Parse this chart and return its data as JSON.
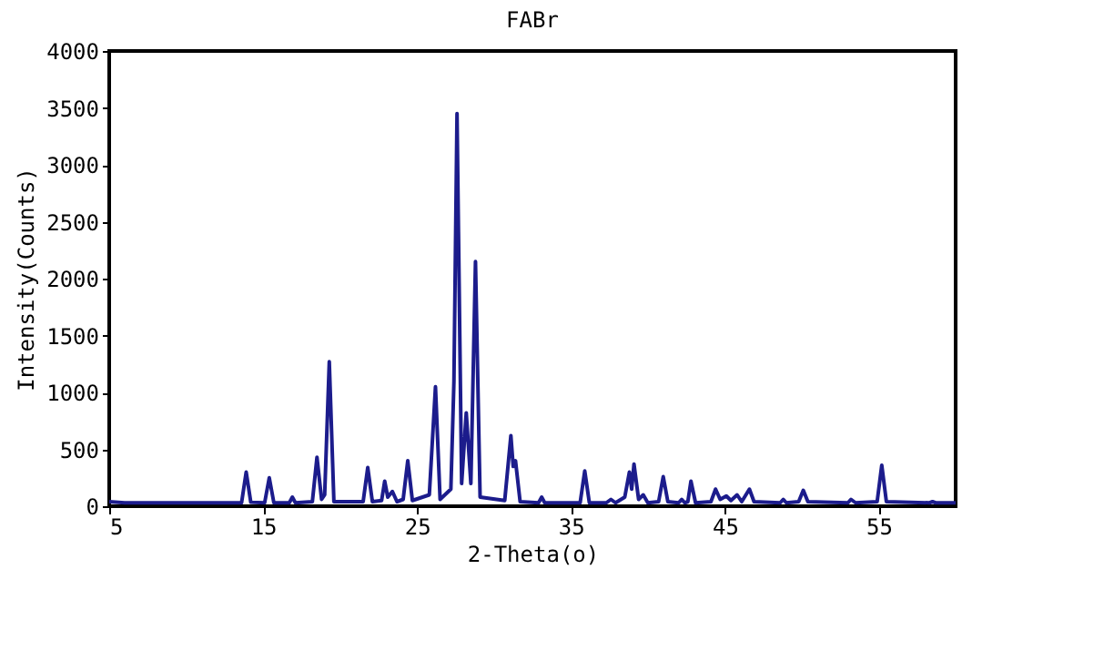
{
  "chart_data": {
    "type": "line",
    "title": "FABr",
    "xlabel": "2-Theta(o)",
    "ylabel": "Intensity(Counts)",
    "xlim": [
      5,
      60
    ],
    "xticks": [
      5,
      15,
      25,
      35,
      45,
      55
    ],
    "ylim": [
      0,
      4000
    ],
    "yticks": [
      0,
      500,
      1000,
      1500,
      2000,
      2500,
      3000,
      3500,
      4000
    ],
    "grid": false,
    "legend": false,
    "marker": "none",
    "line_style": "solid",
    "series": [
      {
        "color": "#1c1c8c",
        "x": [
          5,
          6,
          10,
          13.6,
          13.9,
          14.2,
          15.1,
          15.4,
          15.7,
          16.7,
          16.9,
          17.1,
          18.2,
          18.5,
          18.8,
          19.0,
          19.3,
          19.6,
          21.5,
          21.8,
          22.1,
          22.7,
          22.9,
          23.1,
          23.4,
          23.7,
          24.1,
          24.4,
          24.7,
          25.8,
          26.2,
          26.5,
          27.2,
          27.4,
          27.6,
          27.9,
          28.2,
          28.5,
          28.8,
          29.1,
          30.7,
          31.1,
          31.25,
          31.4,
          31.7,
          32.9,
          33.1,
          33.3,
          35.6,
          35.9,
          36.2,
          37.3,
          37.6,
          37.9,
          38.5,
          38.8,
          38.95,
          39.1,
          39.4,
          39.7,
          40.0,
          40.7,
          41.0,
          41.3,
          42.0,
          42.2,
          42.4,
          42.6,
          42.8,
          43.1,
          44.1,
          44.4,
          44.7,
          45.1,
          45.4,
          45.8,
          46.1,
          46.6,
          46.9,
          48.6,
          48.8,
          49.0,
          49.8,
          50.1,
          50.4,
          53.0,
          53.2,
          53.5,
          54.9,
          55.2,
          55.5,
          58.3,
          58.5,
          58.7,
          60
        ],
        "values": [
          40,
          30,
          30,
          30,
          300,
          35,
          30,
          250,
          30,
          30,
          80,
          30,
          40,
          430,
          60,
          100,
          1270,
          40,
          40,
          340,
          40,
          50,
          220,
          80,
          130,
          40,
          60,
          400,
          50,
          100,
          1050,
          60,
          150,
          1100,
          3450,
          200,
          820,
          200,
          2150,
          80,
          50,
          620,
          350,
          400,
          40,
          30,
          80,
          30,
          30,
          310,
          30,
          30,
          60,
          30,
          80,
          300,
          150,
          370,
          60,
          100,
          30,
          40,
          260,
          40,
          30,
          60,
          30,
          40,
          220,
          30,
          40,
          150,
          60,
          90,
          50,
          100,
          40,
          150,
          40,
          30,
          60,
          30,
          40,
          140,
          40,
          30,
          60,
          30,
          40,
          360,
          40,
          30,
          40,
          30,
          30
        ]
      }
    ]
  }
}
